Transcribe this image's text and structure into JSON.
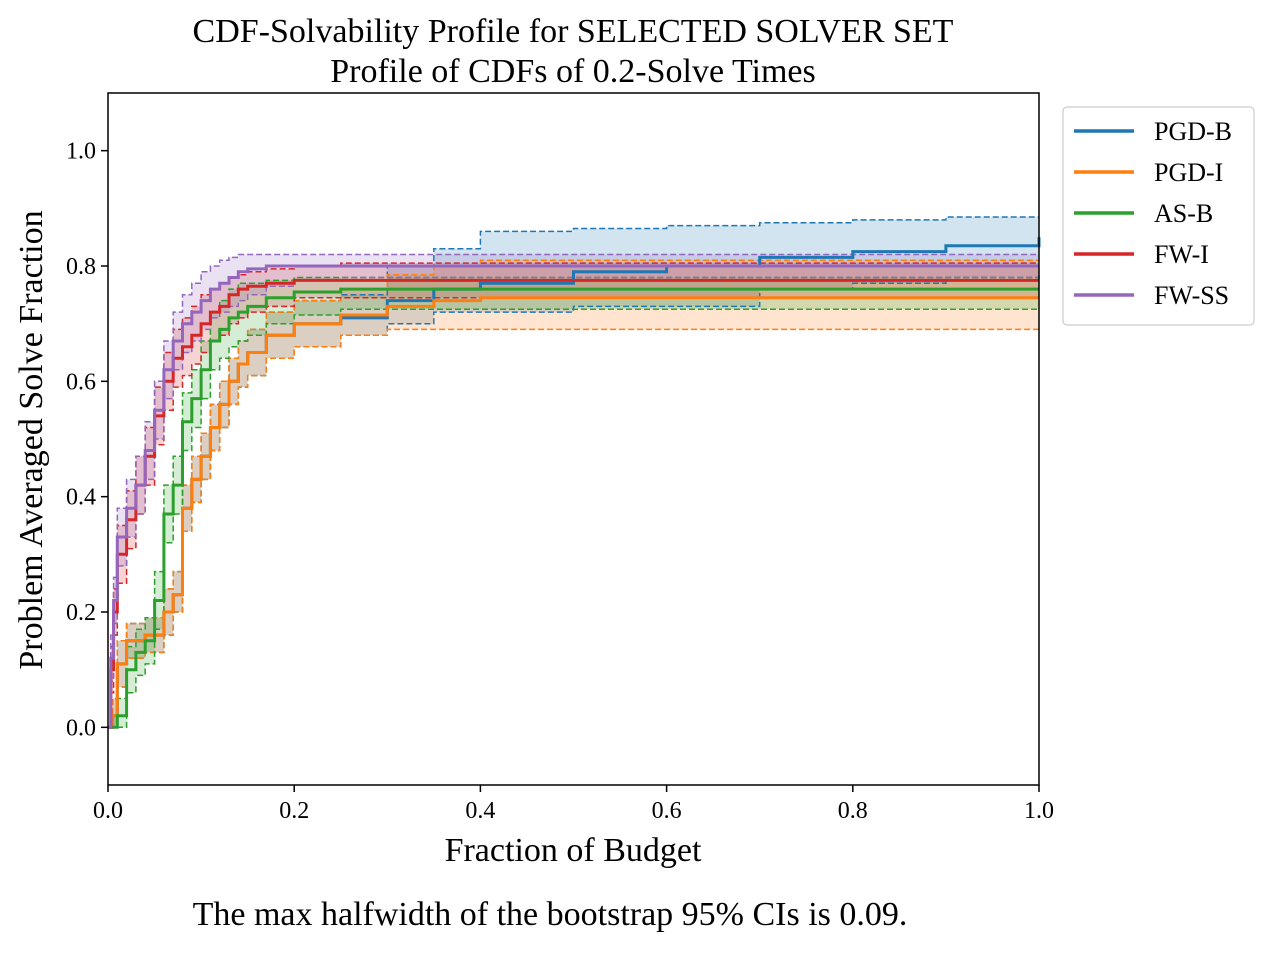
{
  "footnote": "The max halfwidth of the bootstrap 95% CIs is 0.09.",
  "chart_data": {
    "type": "line",
    "title": "CDF-Solvability Profile for SELECTED SOLVER SET",
    "subtitle": "Profile of CDFs of 0.2-Solve Times",
    "xlabel": "Fraction of Budget",
    "ylabel": "Problem Averaged Solve Fraction",
    "xlim": [
      0.0,
      1.0
    ],
    "ylim": [
      -0.1,
      1.1
    ],
    "xticks": [
      "0.0",
      "0.2",
      "0.4",
      "0.6",
      "0.8",
      "1.0"
    ],
    "yticks": [
      "0.0",
      "0.2",
      "0.4",
      "0.6",
      "0.8",
      "1.0"
    ],
    "grid": false,
    "legend_position": "outside-right-top",
    "series": [
      {
        "name": "PGD-B",
        "color": "#1f77b4",
        "x": [
          0,
          0.005,
          0.01,
          0.02,
          0.04,
          0.06,
          0.07,
          0.08,
          0.09,
          0.1,
          0.11,
          0.12,
          0.13,
          0.14,
          0.15,
          0.17,
          0.2,
          0.25,
          0.3,
          0.35,
          0.4,
          0.5,
          0.6,
          0.7,
          0.8,
          0.9,
          1.0
        ],
        "y": [
          0,
          0.02,
          0.11,
          0.15,
          0.16,
          0.2,
          0.23,
          0.38,
          0.43,
          0.47,
          0.52,
          0.56,
          0.6,
          0.63,
          0.65,
          0.68,
          0.7,
          0.71,
          0.74,
          0.76,
          0.77,
          0.79,
          0.8,
          0.815,
          0.825,
          0.835,
          0.85
        ],
        "ci_lower": [
          0,
          0,
          0.07,
          0.12,
          0.13,
          0.16,
          0.2,
          0.34,
          0.39,
          0.43,
          0.48,
          0.52,
          0.56,
          0.59,
          0.61,
          0.64,
          0.66,
          0.68,
          0.7,
          0.72,
          0.72,
          0.73,
          0.73,
          0.76,
          0.77,
          0.78,
          0.79
        ],
        "ci_upper": [
          0,
          0.05,
          0.15,
          0.18,
          0.19,
          0.24,
          0.27,
          0.42,
          0.47,
          0.51,
          0.56,
          0.6,
          0.64,
          0.67,
          0.69,
          0.72,
          0.74,
          0.75,
          0.8,
          0.83,
          0.86,
          0.865,
          0.87,
          0.875,
          0.88,
          0.885,
          0.885
        ]
      },
      {
        "name": "PGD-I",
        "color": "#ff7f0e",
        "x": [
          0,
          0.005,
          0.01,
          0.02,
          0.04,
          0.06,
          0.07,
          0.08,
          0.09,
          0.1,
          0.11,
          0.12,
          0.13,
          0.14,
          0.15,
          0.17,
          0.2,
          0.25,
          0.3,
          0.35,
          0.4,
          0.5,
          0.6,
          0.7,
          0.8,
          0.9,
          1.0
        ],
        "y": [
          0,
          0.02,
          0.11,
          0.15,
          0.16,
          0.2,
          0.23,
          0.38,
          0.43,
          0.47,
          0.52,
          0.56,
          0.6,
          0.63,
          0.65,
          0.68,
          0.7,
          0.715,
          0.73,
          0.74,
          0.745,
          0.745,
          0.745,
          0.745,
          0.745,
          0.745,
          0.745
        ],
        "ci_lower": [
          0,
          0,
          0.07,
          0.12,
          0.13,
          0.16,
          0.2,
          0.34,
          0.39,
          0.43,
          0.48,
          0.52,
          0.56,
          0.59,
          0.61,
          0.64,
          0.66,
          0.68,
          0.69,
          0.69,
          0.69,
          0.69,
          0.69,
          0.69,
          0.69,
          0.69,
          0.69
        ],
        "ci_upper": [
          0,
          0.05,
          0.15,
          0.18,
          0.19,
          0.24,
          0.27,
          0.42,
          0.47,
          0.51,
          0.56,
          0.6,
          0.64,
          0.67,
          0.69,
          0.72,
          0.74,
          0.76,
          0.785,
          0.8,
          0.81,
          0.81,
          0.81,
          0.81,
          0.81,
          0.81,
          0.81
        ]
      },
      {
        "name": "AS-B",
        "color": "#2ca02c",
        "x": [
          0,
          0.005,
          0.01,
          0.02,
          0.03,
          0.04,
          0.05,
          0.06,
          0.07,
          0.08,
          0.09,
          0.1,
          0.11,
          0.12,
          0.13,
          0.14,
          0.15,
          0.17,
          0.2,
          0.25,
          0.3,
          0.4,
          0.5,
          0.6,
          0.8,
          1.0
        ],
        "y": [
          0,
          0,
          0.02,
          0.1,
          0.13,
          0.15,
          0.22,
          0.37,
          0.42,
          0.53,
          0.57,
          0.62,
          0.67,
          0.69,
          0.71,
          0.72,
          0.73,
          0.745,
          0.755,
          0.76,
          0.76,
          0.76,
          0.76,
          0.76,
          0.76,
          0.76
        ],
        "ci_lower": [
          0,
          0,
          0,
          0.06,
          0.09,
          0.11,
          0.17,
          0.32,
          0.37,
          0.48,
          0.52,
          0.57,
          0.62,
          0.64,
          0.66,
          0.67,
          0.68,
          0.7,
          0.715,
          0.725,
          0.725,
          0.725,
          0.725,
          0.725,
          0.725,
          0.725
        ],
        "ci_upper": [
          0,
          0.02,
          0.05,
          0.14,
          0.17,
          0.19,
          0.27,
          0.42,
          0.47,
          0.58,
          0.62,
          0.67,
          0.72,
          0.74,
          0.76,
          0.77,
          0.77,
          0.775,
          0.78,
          0.78,
          0.78,
          0.78,
          0.78,
          0.78,
          0.78,
          0.78
        ]
      },
      {
        "name": "FW-I",
        "color": "#d62728",
        "x": [
          0,
          0.003,
          0.006,
          0.01,
          0.02,
          0.03,
          0.04,
          0.05,
          0.06,
          0.07,
          0.08,
          0.09,
          0.1,
          0.11,
          0.12,
          0.13,
          0.14,
          0.15,
          0.17,
          0.2,
          0.25,
          0.3,
          0.4,
          0.6,
          0.8,
          1.0
        ],
        "y": [
          0,
          0.1,
          0.2,
          0.3,
          0.36,
          0.42,
          0.47,
          0.54,
          0.6,
          0.64,
          0.66,
          0.68,
          0.7,
          0.72,
          0.73,
          0.75,
          0.76,
          0.765,
          0.77,
          0.775,
          0.775,
          0.775,
          0.775,
          0.775,
          0.775,
          0.775
        ],
        "ci_lower": [
          0,
          0.06,
          0.16,
          0.25,
          0.31,
          0.37,
          0.42,
          0.49,
          0.55,
          0.59,
          0.61,
          0.63,
          0.65,
          0.67,
          0.68,
          0.7,
          0.71,
          0.72,
          0.73,
          0.745,
          0.745,
          0.745,
          0.745,
          0.745,
          0.745,
          0.745
        ],
        "ci_upper": [
          0,
          0.14,
          0.24,
          0.35,
          0.41,
          0.47,
          0.52,
          0.59,
          0.65,
          0.69,
          0.71,
          0.73,
          0.75,
          0.76,
          0.77,
          0.78,
          0.785,
          0.79,
          0.795,
          0.8,
          0.805,
          0.805,
          0.805,
          0.805,
          0.805,
          0.805
        ]
      },
      {
        "name": "FW-SS",
        "color": "#9467bd",
        "x": [
          0,
          0.003,
          0.006,
          0.01,
          0.02,
          0.03,
          0.04,
          0.05,
          0.06,
          0.07,
          0.08,
          0.09,
          0.1,
          0.11,
          0.12,
          0.13,
          0.14,
          0.15,
          0.17,
          0.2,
          0.25,
          0.3,
          0.4,
          0.6,
          0.8,
          1.0
        ],
        "y": [
          0,
          0.12,
          0.22,
          0.33,
          0.38,
          0.42,
          0.48,
          0.55,
          0.62,
          0.67,
          0.7,
          0.72,
          0.74,
          0.76,
          0.77,
          0.78,
          0.79,
          0.795,
          0.8,
          0.8,
          0.8,
          0.8,
          0.8,
          0.8,
          0.8,
          0.8
        ],
        "ci_lower": [
          0,
          0.08,
          0.18,
          0.28,
          0.33,
          0.37,
          0.43,
          0.5,
          0.57,
          0.62,
          0.65,
          0.67,
          0.69,
          0.71,
          0.72,
          0.73,
          0.74,
          0.75,
          0.765,
          0.775,
          0.78,
          0.78,
          0.78,
          0.78,
          0.78,
          0.78
        ],
        "ci_upper": [
          0,
          0.16,
          0.26,
          0.38,
          0.43,
          0.47,
          0.53,
          0.6,
          0.67,
          0.72,
          0.75,
          0.77,
          0.79,
          0.8,
          0.81,
          0.815,
          0.82,
          0.82,
          0.82,
          0.82,
          0.82,
          0.82,
          0.82,
          0.82,
          0.82,
          0.82
        ]
      }
    ]
  }
}
